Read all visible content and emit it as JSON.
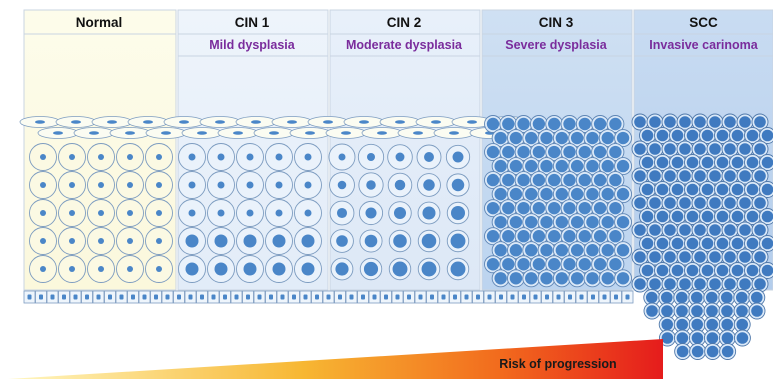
{
  "stages": [
    {
      "title": "Normal",
      "subtitle": ""
    },
    {
      "title": "CIN 1",
      "subtitle": "Mild dysplasia"
    },
    {
      "title": "CIN 2",
      "subtitle": "Moderate dysplasia"
    },
    {
      "title": "CIN 3",
      "subtitle": "Severe dysplasia"
    },
    {
      "title": "SCC",
      "subtitle": "Invasive carinoma"
    }
  ],
  "risk": {
    "label": "Risk of progression"
  },
  "colors": {
    "subtitle_text": "#7a2c9c",
    "nucleus": "#4a86c8",
    "cell_outline": "#7d9cc0",
    "cell_fill_normal": "#fbf9e3",
    "cell_fill_dysplastic": "#eaf2fb",
    "risk_gradient": [
      "#fff7c2",
      "#f7b733",
      "#f26b1d",
      "#e51c1c"
    ]
  }
}
